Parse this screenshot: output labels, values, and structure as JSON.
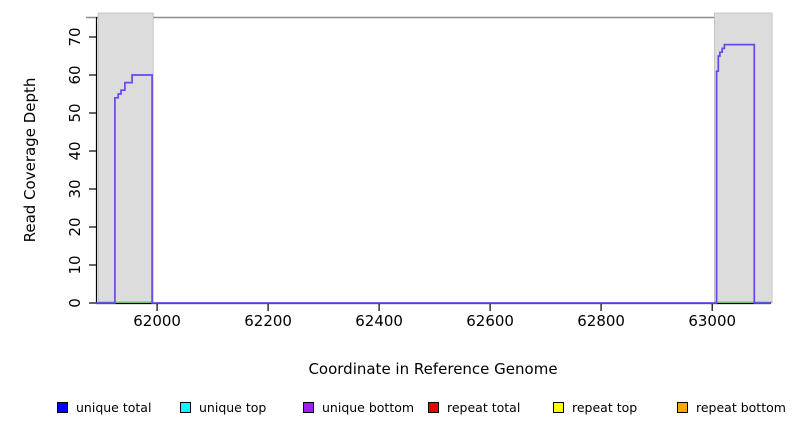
{
  "chart_data": {
    "type": "line",
    "subtype": "step-coverage-plot",
    "title": "",
    "xlabel": "Coordinate in Reference Genome",
    "ylabel": "Read Coverage Depth",
    "xlim": [
      61890,
      63106
    ],
    "ylim": [
      0,
      75
    ],
    "x_ticks": [
      62000,
      62200,
      62400,
      62600,
      62800,
      63000
    ],
    "y_ticks": [
      0,
      10,
      20,
      30,
      40,
      50,
      60,
      70
    ],
    "grid": "off",
    "box_top_color": "#8c8c8c",
    "axis_color": "#000000",
    "shaded_regions": [
      {
        "name": "repeat-region-left",
        "start": 61894,
        "end": 61993,
        "fill": "#dcdcdc",
        "border": "#bebebe"
      },
      {
        "name": "repeat-region-right",
        "start": 63004,
        "end": 63108,
        "fill": "#dcdcdc",
        "border": "#bebebe"
      }
    ],
    "coverage_line": {
      "name": "unique coverage (blue total overlapping purple bottom)",
      "color": "#6b46e8",
      "points": [
        [
          61890,
          0
        ],
        [
          61924,
          0
        ],
        [
          61924,
          54
        ],
        [
          61930,
          54
        ],
        [
          61930,
          55
        ],
        [
          61935,
          55
        ],
        [
          61935,
          56
        ],
        [
          61942,
          56
        ],
        [
          61942,
          58
        ],
        [
          61955,
          58
        ],
        [
          61955,
          60
        ],
        [
          61991,
          60
        ],
        [
          61991,
          0
        ],
        [
          63008,
          0
        ],
        [
          63008,
          61
        ],
        [
          63011,
          61
        ],
        [
          63011,
          65
        ],
        [
          63014,
          65
        ],
        [
          63014,
          66
        ],
        [
          63018,
          66
        ],
        [
          63018,
          67
        ],
        [
          63022,
          67
        ],
        [
          63022,
          68
        ],
        [
          63076,
          68
        ],
        [
          63076,
          0
        ],
        [
          63106,
          0
        ]
      ]
    },
    "baseline_overlap_segments": {
      "name": "top/bottom strand lines overlapping at zero inside repeat regions",
      "color": "#6ec86e",
      "y": 0,
      "segments": [
        [
          61894,
          61993
        ],
        [
          63004,
          63108
        ]
      ]
    },
    "legend": {
      "position": "bottom",
      "items": [
        {
          "label": "unique total",
          "color": "#0000ff"
        },
        {
          "label": "unique top",
          "color": "#00ffff"
        },
        {
          "label": "unique bottom",
          "color": "#a020f0"
        },
        {
          "label": "repeat total",
          "color": "#ee0000"
        },
        {
          "label": "repeat top",
          "color": "#ffff00"
        },
        {
          "label": "repeat bottom",
          "color": "#ffa500"
        }
      ]
    }
  }
}
